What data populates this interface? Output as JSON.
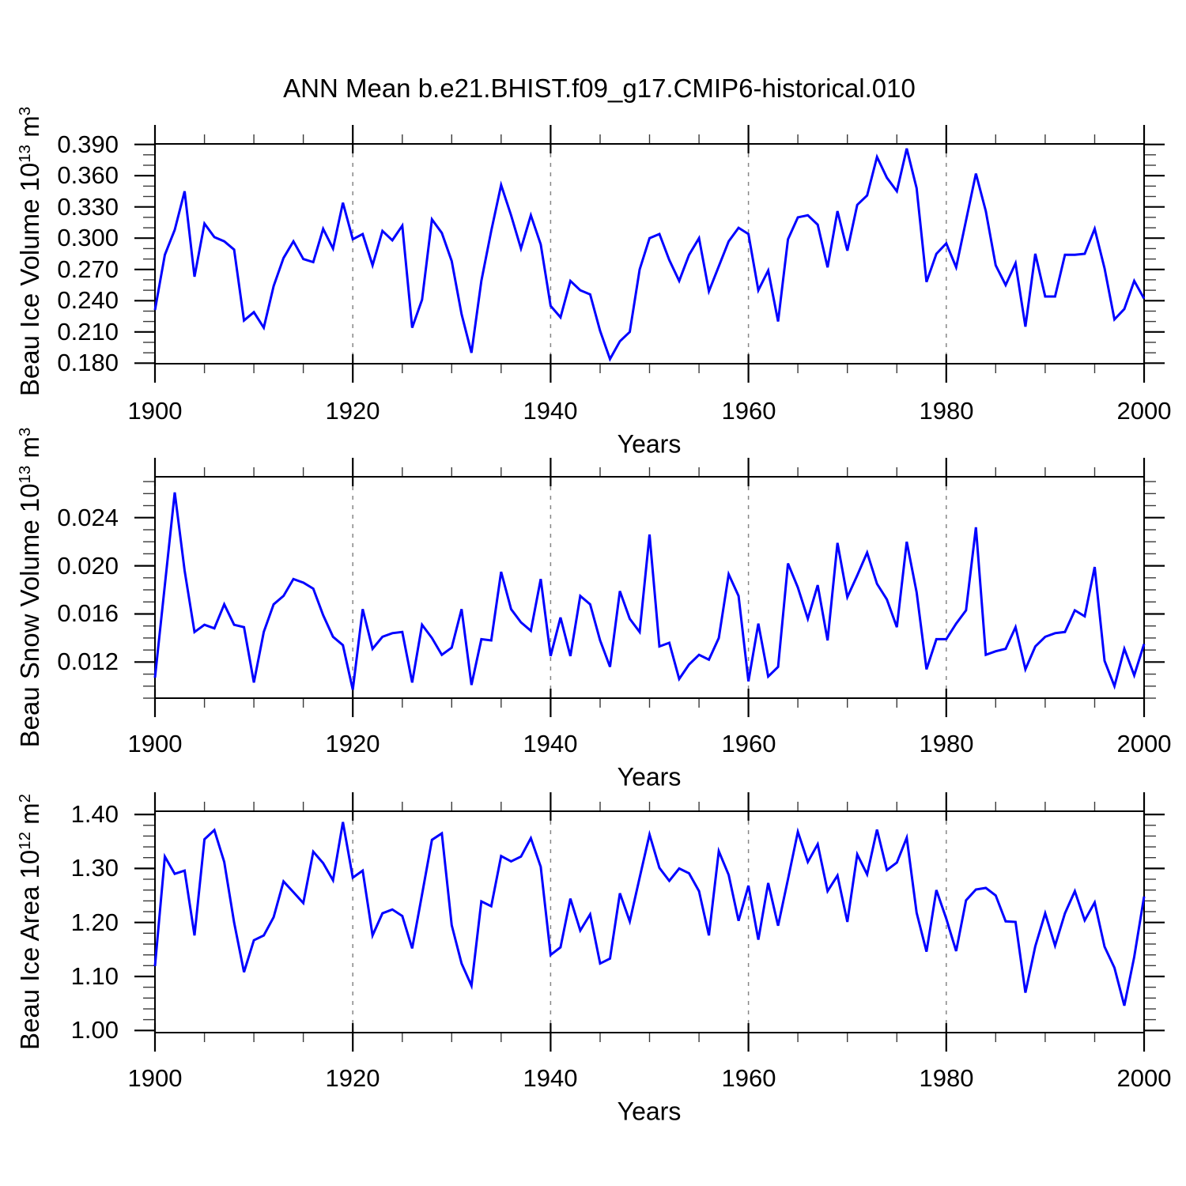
{
  "title": "ANN Mean b.e21.BHIST.f09_g17.CMIP6-historical.010",
  "line_color": "#0000ff",
  "axis_color": "#000000",
  "gridline_color": "#878787",
  "x_axis": {
    "label": "Years",
    "tick_labels": [
      "1900",
      "1920",
      "1940",
      "1960",
      "1980",
      "2000"
    ],
    "tick_values": [
      1900,
      1920,
      1940,
      1960,
      1980,
      2000
    ],
    "minor_step": 5,
    "gridline_years": [
      1920,
      1940,
      1960,
      1980
    ],
    "xlim": [
      1900,
      2000
    ]
  },
  "chart_data": [
    {
      "type": "line",
      "id": "beau-ice-volume",
      "ylabel_text": "Beau Ice Volume 10^13 m^3",
      "ylabel_segments": [
        {
          "t": "Beau Ice Volume 10"
        },
        {
          "t": "13",
          "sup": true
        },
        {
          "t": " m"
        },
        {
          "t": "3",
          "sup": true
        }
      ],
      "ytick_labels": [
        "0.390",
        "0.360",
        "0.330",
        "0.300",
        "0.270",
        "0.240",
        "0.210",
        "0.180"
      ],
      "ytick_values": [
        0.39,
        0.36,
        0.33,
        0.3,
        0.27,
        0.24,
        0.21,
        0.18
      ],
      "yminor_step": 0.01,
      "ylim": [
        0.1795,
        0.3905
      ],
      "x_start": 1900,
      "x_step": 1,
      "values": [
        0.231,
        0.284,
        0.308,
        0.345,
        0.263,
        0.314,
        0.301,
        0.297,
        0.289,
        0.221,
        0.229,
        0.214,
        0.254,
        0.281,
        0.297,
        0.28,
        0.277,
        0.309,
        0.29,
        0.334,
        0.299,
        0.304,
        0.274,
        0.307,
        0.298,
        0.312,
        0.214,
        0.241,
        0.318,
        0.305,
        0.278,
        0.227,
        0.19,
        0.259,
        0.307,
        0.351,
        0.322,
        0.29,
        0.322,
        0.294,
        0.235,
        0.224,
        0.259,
        0.25,
        0.246,
        0.211,
        0.184,
        0.201,
        0.21,
        0.27,
        0.3,
        0.304,
        0.279,
        0.259,
        0.284,
        0.3,
        0.249,
        0.273,
        0.297,
        0.31,
        0.304,
        0.25,
        0.269,
        0.22,
        0.299,
        0.32,
        0.322,
        0.313,
        0.272,
        0.326,
        0.288,
        0.332,
        0.341,
        0.378,
        0.358,
        0.345,
        0.386,
        0.348,
        0.258,
        0.285,
        0.295,
        0.272,
        0.317,
        0.362,
        0.326,
        0.274,
        0.255,
        0.276,
        0.215,
        0.285,
        0.244,
        0.244,
        0.284,
        0.284,
        0.285,
        0.309,
        0.271,
        0.222,
        0.232,
        0.259,
        0.242
      ]
    },
    {
      "type": "line",
      "id": "beau-snow-volume",
      "ylabel_text": "Beau Snow Volume 10^13 m^3",
      "ylabel_segments": [
        {
          "t": "Beau Snow Volume 10"
        },
        {
          "t": "13",
          "sup": true
        },
        {
          "t": " m"
        },
        {
          "t": "3",
          "sup": true
        }
      ],
      "ytick_labels": [
        "0.024",
        "0.020",
        "0.016",
        "0.012"
      ],
      "ytick_values": [
        0.024,
        0.02,
        0.016,
        0.012
      ],
      "yminor_step": 0.001,
      "ylim": [
        0.009,
        0.0274
      ],
      "x_start": 1900,
      "x_step": 1,
      "values": [
        0.0107,
        0.0184,
        0.0261,
        0.0196,
        0.0145,
        0.0151,
        0.0148,
        0.0168,
        0.0151,
        0.0149,
        0.0103,
        0.0145,
        0.0168,
        0.0175,
        0.0189,
        0.0186,
        0.0181,
        0.0159,
        0.0141,
        0.0134,
        0.0097,
        0.0164,
        0.0131,
        0.0141,
        0.0144,
        0.0145,
        0.0103,
        0.0151,
        0.014,
        0.0126,
        0.0132,
        0.0164,
        0.0101,
        0.0139,
        0.0138,
        0.0195,
        0.0164,
        0.0153,
        0.0146,
        0.0189,
        0.0125,
        0.0157,
        0.0125,
        0.0175,
        0.0168,
        0.0138,
        0.0116,
        0.0179,
        0.0156,
        0.0145,
        0.0226,
        0.0133,
        0.0136,
        0.0106,
        0.0118,
        0.0126,
        0.0122,
        0.014,
        0.0193,
        0.0175,
        0.0104,
        0.0152,
        0.0108,
        0.0116,
        0.0202,
        0.0182,
        0.0156,
        0.0184,
        0.0138,
        0.0219,
        0.0174,
        0.0192,
        0.0211,
        0.0185,
        0.0172,
        0.0149,
        0.022,
        0.0178,
        0.0114,
        0.0139,
        0.0139,
        0.0152,
        0.0163,
        0.0232,
        0.0126,
        0.0129,
        0.0131,
        0.0149,
        0.0114,
        0.0133,
        0.0141,
        0.0144,
        0.0145,
        0.0163,
        0.0158,
        0.0199,
        0.0121,
        0.01,
        0.0131,
        0.0109,
        0.0135
      ]
    },
    {
      "type": "line",
      "id": "beau-ice-area",
      "ylabel_text": "Beau Ice Area 10^12 m^2",
      "ylabel_segments": [
        {
          "t": "Beau Ice Area 10"
        },
        {
          "t": "12",
          "sup": true
        },
        {
          "t": " m"
        },
        {
          "t": "2",
          "sup": true
        }
      ],
      "ytick_labels": [
        "1.40",
        "1.30",
        "1.20",
        "1.10",
        "1.00"
      ],
      "ytick_values": [
        1.4,
        1.3,
        1.2,
        1.1,
        1.0
      ],
      "yminor_step": 0.02,
      "ylim": [
        0.996,
        1.406
      ],
      "x_start": 1900,
      "x_step": 1,
      "values": [
        1.119,
        1.322,
        1.29,
        1.296,
        1.176,
        1.354,
        1.371,
        1.312,
        1.2,
        1.108,
        1.167,
        1.176,
        1.21,
        1.276,
        1.256,
        1.236,
        1.331,
        1.31,
        1.278,
        1.386,
        1.283,
        1.296,
        1.176,
        1.217,
        1.224,
        1.212,
        1.152,
        1.252,
        1.353,
        1.365,
        1.195,
        1.124,
        1.083,
        1.239,
        1.23,
        1.323,
        1.313,
        1.322,
        1.356,
        1.303,
        1.14,
        1.154,
        1.244,
        1.185,
        1.215,
        1.124,
        1.133,
        1.254,
        1.202,
        1.283,
        1.363,
        1.301,
        1.277,
        1.3,
        1.291,
        1.258,
        1.176,
        1.332,
        1.288,
        1.203,
        1.268,
        1.168,
        1.273,
        1.194,
        1.28,
        1.368,
        1.312,
        1.345,
        1.258,
        1.287,
        1.201,
        1.326,
        1.289,
        1.372,
        1.297,
        1.311,
        1.357,
        1.218,
        1.146,
        1.26,
        1.207,
        1.147,
        1.241,
        1.261,
        1.264,
        1.25,
        1.202,
        1.201,
        1.07,
        1.156,
        1.217,
        1.157,
        1.217,
        1.258,
        1.204,
        1.237,
        1.155,
        1.116,
        1.046,
        1.136,
        1.248
      ]
    }
  ]
}
